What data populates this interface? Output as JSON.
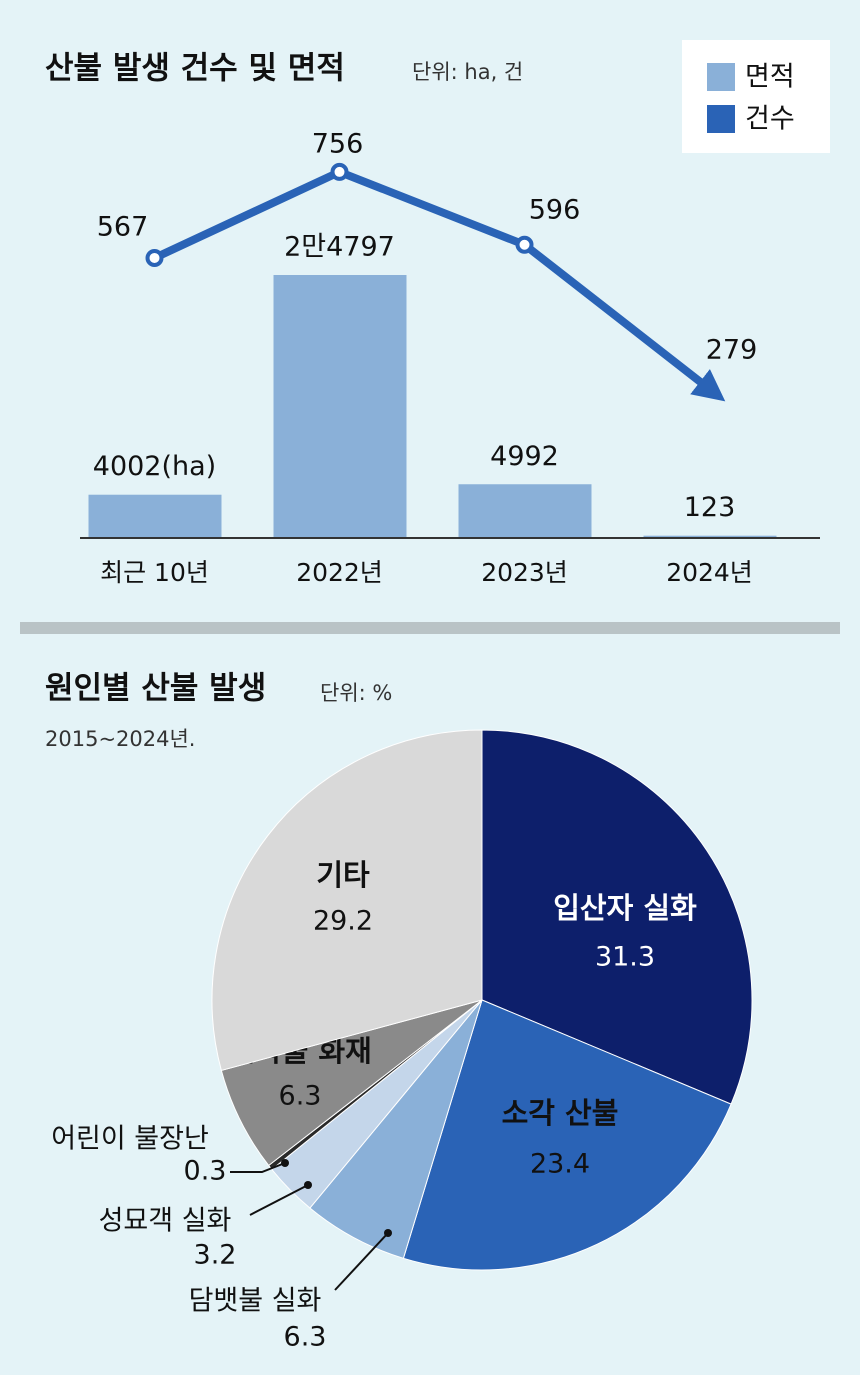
{
  "chart_data": [
    {
      "type": "combo",
      "title": "산불 발생 건수 및 면적",
      "unit": "단위: ha, 건",
      "categories": [
        "최근 10년",
        "2022년",
        "2023년",
        "2024년"
      ],
      "series": [
        {
          "name": "면적",
          "color": "#8ab0d8",
          "values": [
            4002,
            24797,
            4992,
            123
          ],
          "value_labels": [
            "4002(ha)",
            "2만4797",
            "4992",
            "123"
          ]
        },
        {
          "name": "건수",
          "color": "#2a63b6",
          "axis": "y2",
          "values": [
            567,
            756,
            596,
            279
          ]
        }
      ],
      "ylim": [
        0,
        41360
      ],
      "y2lim": [
        -46,
        914
      ],
      "legend": "top-right"
    },
    {
      "type": "pie",
      "title": "원인별 산불 발생",
      "unit": "단위: %",
      "subtitle": "2015~2024년.",
      "categories": [
        "입산자 실화",
        "소각 산불",
        "담뱃불 실화",
        "성묘객 실화",
        "어린이 불장난",
        "건축물 화재",
        "기타"
      ],
      "values": [
        31.3,
        23.4,
        6.3,
        3.2,
        0.3,
        6.3,
        29.2
      ],
      "colors": [
        "#0d1f6b",
        "#2a63b6",
        "#8ab0d8",
        "#c4d6ea",
        "#2a2a2a",
        "#8a8a8a",
        "#d9d9d9"
      ]
    }
  ]
}
